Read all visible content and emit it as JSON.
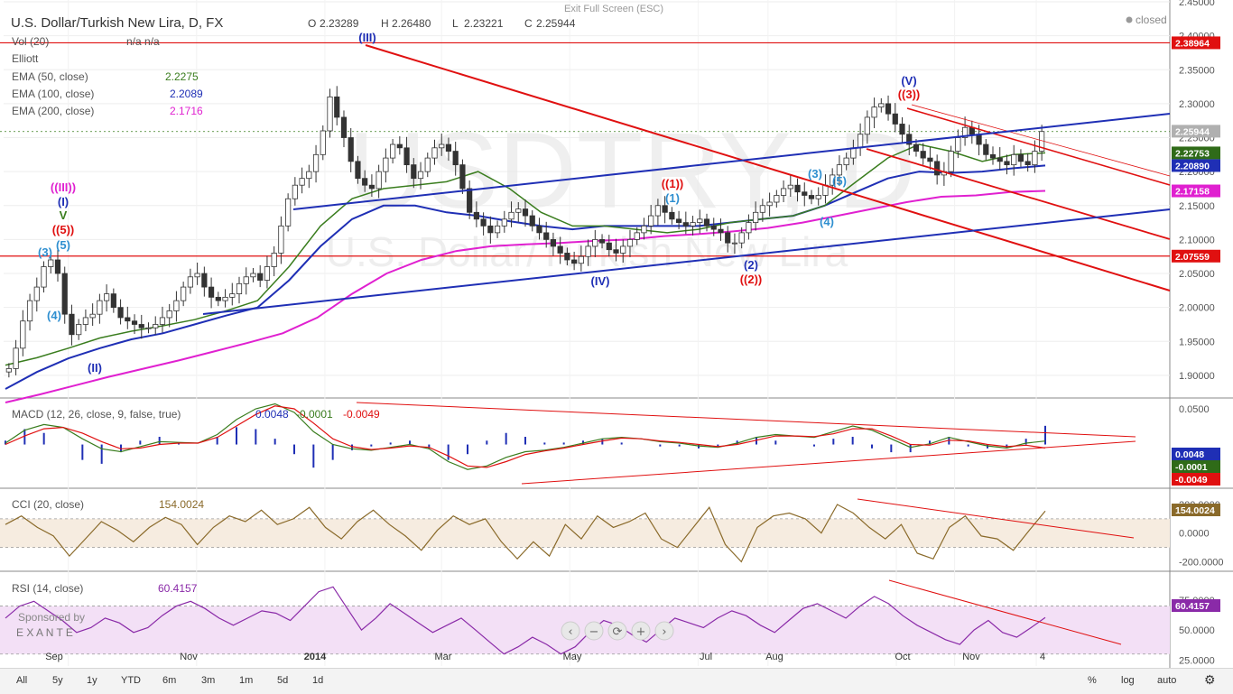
{
  "header": {
    "title": "U.S. Dollar/Turkish New Lira, D, FX",
    "ohlc": {
      "o_label": "O",
      "o": "2.23289",
      "h_label": "H",
      "h": "2.26480",
      "l_label": "L",
      "l": "2.23221",
      "c_label": "C",
      "c": "2.25944"
    },
    "exit_fullscreen": "Exit Full Screen (ESC)",
    "status": "closed"
  },
  "legend": [
    {
      "label": "Vol (20)",
      "value": "n/a  n/a",
      "color": "#555555"
    },
    {
      "label": "Elliott",
      "value": "",
      "color": "#555555"
    },
    {
      "label": "EMA (50, close)",
      "value": "2.2275",
      "color": "#3a7d1e"
    },
    {
      "label": "EMA (100, close)",
      "value": "2.2089",
      "color": "#1f2fb5"
    },
    {
      "label": "EMA (200, close)",
      "value": "2.1716",
      "color": "#e020d0"
    }
  ],
  "indicators": {
    "macd": {
      "label": "MACD (12, 26, close, 9, false, true)",
      "v1": "0.0048",
      "v2": "-0.0001",
      "v3": "-0.0049"
    },
    "cci": {
      "label": "CCI (20, close)",
      "value": "154.0024"
    },
    "rsi": {
      "label": "RSI (14, close)",
      "value": "60.4157"
    }
  },
  "sponsor": {
    "line1": "Sponsored by",
    "line2": "E X A N T E"
  },
  "watermark": {
    "big": "USDTRY, D",
    "small": "U.S. Dollar/Turkish New Lira"
  },
  "toolbar": {
    "ranges": [
      "All",
      "5y",
      "1y",
      "YTD",
      "6m",
      "3m",
      "1m",
      "5d",
      "1d"
    ],
    "percent": "%",
    "log": "log",
    "auto": "auto"
  },
  "colors": {
    "red": "#e01010",
    "blue": "#1f2fb5",
    "green": "#3a7d1e",
    "magenta": "#e020d0",
    "up": "#1e7a1e",
    "down": "#b01c1c"
  },
  "chart_data": [
    {
      "type": "candlestick",
      "title": "U.S. Dollar/Turkish New Lira, D, FX",
      "y_ticks": [
        "2.45000",
        "2.40000",
        "2.35000",
        "2.30000",
        "2.25000",
        "2.20000",
        "2.15000",
        "2.10000",
        "2.05000",
        "2.00000",
        "1.95000",
        "1.90000"
      ],
      "y_tick_values": [
        2.45,
        2.4,
        2.35,
        2.3,
        2.25,
        2.2,
        2.15,
        2.1,
        2.05,
        2.0,
        1.95,
        1.9
      ],
      "ylim": [
        1.868,
        2.45
      ],
      "x_labels": [
        "Sep",
        "Nov",
        "2014",
        "Mar",
        "May",
        "Jul",
        "Aug",
        "Oct",
        "Nov",
        "4"
      ],
      "x_label_pos": [
        0.04,
        0.15,
        0.26,
        0.36,
        0.47,
        0.58,
        0.64,
        0.75,
        0.8,
        0.87
      ],
      "close": [
        1.91,
        1.94,
        1.98,
        2.01,
        2.03,
        2.06,
        2.07,
        2.05,
        1.99,
        1.96,
        1.975,
        1.985,
        1.99,
        2.01,
        2.02,
        2.0,
        1.985,
        1.98,
        1.975,
        1.97,
        1.97,
        1.975,
        1.985,
        1.995,
        2.01,
        2.03,
        2.045,
        2.05,
        2.03,
        2.015,
        2.01,
        2.015,
        2.02,
        2.035,
        2.045,
        2.05,
        2.04,
        2.06,
        2.08,
        2.12,
        2.16,
        2.18,
        2.19,
        2.2,
        2.225,
        2.26,
        2.31,
        2.28,
        2.25,
        2.215,
        2.19,
        2.18,
        2.175,
        2.2,
        2.22,
        2.24,
        2.235,
        2.21,
        2.19,
        2.2,
        2.22,
        2.235,
        2.24,
        2.23,
        2.21,
        2.175,
        2.14,
        2.13,
        2.12,
        2.11,
        2.12,
        2.13,
        2.14,
        2.145,
        2.135,
        2.12,
        2.11,
        2.1,
        2.09,
        2.08,
        2.07,
        2.065,
        2.075,
        2.09,
        2.1,
        2.095,
        2.085,
        2.08,
        2.09,
        2.1,
        2.11,
        2.12,
        2.135,
        2.15,
        2.14,
        2.13,
        2.125,
        2.12,
        2.125,
        2.13,
        2.12,
        2.115,
        2.11,
        2.095,
        2.095,
        2.11,
        2.125,
        2.14,
        2.15,
        2.155,
        2.165,
        2.175,
        2.18,
        2.17,
        2.165,
        2.16,
        2.165,
        2.18,
        2.195,
        2.21,
        2.22,
        2.235,
        2.255,
        2.28,
        2.295,
        2.3,
        2.285,
        2.27,
        2.255,
        2.24,
        2.23,
        2.22,
        2.215,
        2.195,
        2.2,
        2.23,
        2.25,
        2.265,
        2.255,
        2.24,
        2.225,
        2.22,
        2.215,
        2.21,
        2.225,
        2.215,
        2.21,
        2.23,
        2.259
      ],
      "ema50": [
        1.915,
        1.926,
        1.94,
        1.955,
        1.965,
        1.973,
        1.982,
        1.995,
        2.01,
        2.06,
        2.12,
        2.16,
        2.175,
        2.18,
        2.185,
        2.2,
        2.175,
        2.14,
        2.12,
        2.12,
        2.115,
        2.11,
        2.115,
        2.125,
        2.13,
        2.135,
        2.15,
        2.185,
        2.22,
        2.24,
        2.23,
        2.215,
        2.225,
        2.2275
      ],
      "ema100": [
        1.88,
        1.905,
        1.925,
        1.94,
        1.953,
        1.962,
        1.975,
        1.988,
        2.0,
        2.04,
        2.09,
        2.13,
        2.15,
        2.15,
        2.14,
        2.135,
        2.127,
        2.12,
        2.115,
        2.12,
        2.12,
        2.12,
        2.12,
        2.125,
        2.13,
        2.135,
        2.15,
        2.17,
        2.19,
        2.2,
        2.198,
        2.2,
        2.205,
        2.2089
      ],
      "ema200": [
        1.86,
        1.872,
        1.885,
        1.898,
        1.91,
        1.922,
        1.935,
        1.948,
        1.962,
        1.985,
        2.02,
        2.05,
        2.07,
        2.083,
        2.09,
        2.093,
        2.095,
        2.098,
        2.1,
        2.105,
        2.108,
        2.112,
        2.117,
        2.125,
        2.135,
        2.145,
        2.155,
        2.163,
        2.165,
        2.17,
        2.1716
      ],
      "hlines": [
        {
          "value": 2.38964,
          "label": "2.38964"
        },
        {
          "value": 2.07559,
          "label": "2.07559"
        }
      ],
      "price_tags": [
        {
          "value": 2.25944,
          "label": "2.25944",
          "color": "#b0b0b0"
        },
        {
          "value": 2.22753,
          "label": "2.22753",
          "color": "#2f6b18"
        },
        {
          "value": 2.2089,
          "label": "2.20890",
          "color": "#1f2fb5"
        },
        {
          "value": 2.17158,
          "label": "2.17158",
          "color": "#e020d0"
        }
      ],
      "elliott_labels": [
        {
          "text": "(III)",
          "color": "#1f2fb5"
        },
        {
          "text": "(V)",
          "color": "#1f2fb5"
        },
        {
          "text": "((3))",
          "color": "#e01010"
        },
        {
          "text": "((III))",
          "color": "#e020d0"
        },
        {
          "text": "(I)",
          "color": "#1f2fb5"
        },
        {
          "text": "V",
          "color": "#3a7d1e"
        },
        {
          "text": "((5))",
          "color": "#e01010"
        },
        {
          "text": "(3)",
          "color": "#2f8fd0"
        },
        {
          "text": "(5)",
          "color": "#2f8fd0"
        },
        {
          "text": "(4)",
          "color": "#2f8fd0"
        },
        {
          "text": "(II)",
          "color": "#1f2fb5"
        },
        {
          "text": "((1))",
          "color": "#e01010"
        },
        {
          "text": "(1)",
          "color": "#2f8fd0"
        },
        {
          "text": "(IV)",
          "color": "#1f2fb5"
        },
        {
          "text": "(2)",
          "color": "#1f2fb5"
        },
        {
          "text": "((2))",
          "color": "#e01010"
        },
        {
          "text": "(3)",
          "color": "#2f8fd0"
        },
        {
          "text": "(5)",
          "color": "#2f8fd0"
        },
        {
          "text": "(4)",
          "color": "#2f8fd0"
        }
      ]
    },
    {
      "type": "macd",
      "y_ticks": [
        "0.0500"
      ],
      "tags": [
        {
          "label": "0.0048",
          "color": "#1f2fb5"
        },
        {
          "label": "-0.0001",
          "color": "#2f6b18"
        },
        {
          "label": "-0.0049",
          "color": "#e01010"
        }
      ],
      "macd": [
        0.002,
        0.02,
        0.028,
        0.024,
        0.008,
        -0.006,
        -0.01,
        -0.003,
        0.004,
        0.003,
        0.002,
        0.014,
        0.035,
        0.05,
        0.057,
        0.045,
        0.018,
        0.0,
        -0.006,
        -0.008,
        -0.004,
        0.0,
        -0.006,
        -0.024,
        -0.035,
        -0.03,
        -0.018,
        -0.01,
        -0.008,
        -0.004,
        0.002,
        0.008,
        0.01,
        0.008,
        0.004,
        0.002,
        -0.002,
        -0.004,
        0.002,
        0.01,
        0.014,
        0.012,
        0.01,
        0.018,
        0.026,
        0.02,
        0.008,
        -0.004,
        0.001,
        0.01,
        0.004,
        -0.002,
        -0.005,
        0.002,
        0.0048
      ],
      "signal": [
        0.0,
        0.012,
        0.022,
        0.024,
        0.016,
        0.004,
        -0.006,
        -0.005,
        0.0,
        0.002,
        0.002,
        0.01,
        0.026,
        0.042,
        0.054,
        0.05,
        0.03,
        0.008,
        -0.003,
        -0.007,
        -0.005,
        -0.002,
        -0.004,
        -0.016,
        -0.03,
        -0.032,
        -0.024,
        -0.014,
        -0.009,
        -0.005,
        0.0,
        0.005,
        0.009,
        0.008,
        0.005,
        0.003,
        0.0,
        -0.003,
        0.0,
        0.006,
        0.012,
        0.012,
        0.011,
        0.015,
        0.022,
        0.022,
        0.012,
        0.0,
        -0.001,
        0.006,
        0.005,
        0.0,
        -0.003,
        -0.001,
        -0.0049
      ]
    },
    {
      "type": "cci",
      "y_ticks": [
        "200.0000",
        "0.0000",
        "-200.0000"
      ],
      "tag": "154.0024",
      "values": [
        60,
        120,
        40,
        -20,
        -160,
        -40,
        80,
        20,
        -60,
        40,
        110,
        60,
        -80,
        40,
        120,
        80,
        160,
        60,
        100,
        180,
        40,
        -40,
        80,
        160,
        60,
        -20,
        -120,
        20,
        120,
        60,
        100,
        -60,
        -180,
        -60,
        -160,
        60,
        -40,
        120,
        40,
        80,
        140,
        -40,
        -100,
        40,
        180,
        -80,
        -200,
        40,
        120,
        140,
        100,
        0,
        200,
        140,
        40,
        -40,
        60,
        -140,
        -180,
        40,
        120,
        -20,
        -40,
        -120,
        20,
        154
      ]
    },
    {
      "type": "rsi",
      "y_ticks": [
        "75.0000",
        "50.0000",
        "25.0000"
      ],
      "tag": "60.4157",
      "values": [
        60,
        70,
        74,
        66,
        58,
        48,
        52,
        60,
        56,
        48,
        52,
        62,
        70,
        74,
        68,
        60,
        54,
        60,
        66,
        64,
        58,
        70,
        82,
        86,
        68,
        50,
        60,
        72,
        64,
        56,
        48,
        54,
        60,
        50,
        40,
        30,
        36,
        44,
        38,
        30,
        36,
        48,
        58,
        54,
        46,
        40,
        50,
        60,
        56,
        52,
        60,
        66,
        62,
        54,
        48,
        58,
        68,
        72,
        66,
        60,
        70,
        78,
        72,
        62,
        54,
        48,
        42,
        38,
        50,
        58,
        48,
        44,
        52,
        60.4157
      ]
    }
  ]
}
